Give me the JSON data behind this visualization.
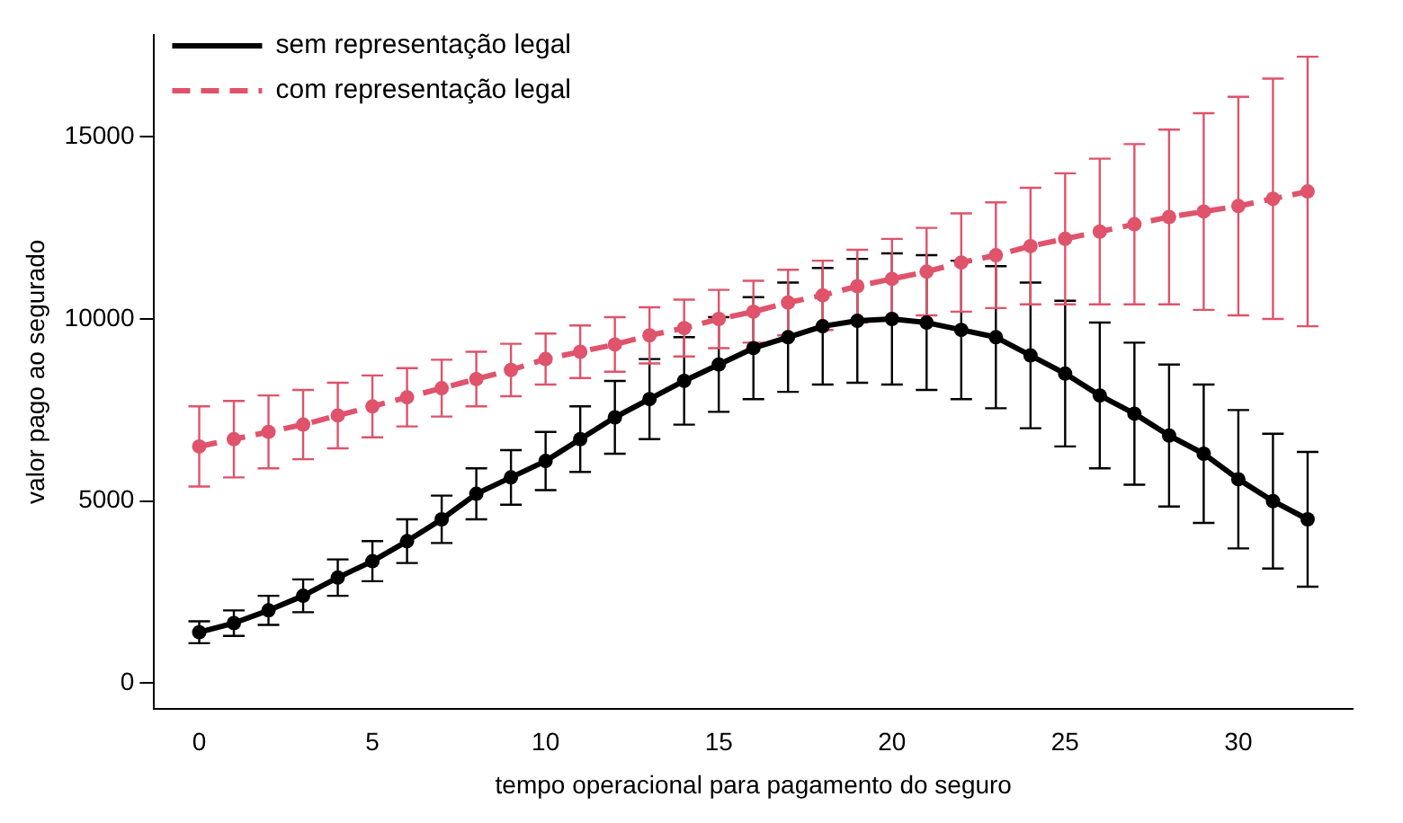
{
  "chart_data": {
    "type": "line",
    "xlabel": "tempo operacional para pagamento do seguro",
    "ylabel": "valor pago ao segurado",
    "xlim": [
      -1.3,
      33.3
    ],
    "ylim": [
      -700,
      17800
    ],
    "xticks": [
      0,
      5,
      10,
      15,
      20,
      25,
      30
    ],
    "yticks": [
      0,
      5000,
      10000,
      15000
    ],
    "grid": false,
    "legend": "top left",
    "marker": "circle",
    "series": [
      {
        "name": "sem representação legal",
        "color": "#000000",
        "line_style": "solid",
        "x": [
          0,
          1,
          2,
          3,
          4,
          5,
          6,
          7,
          8,
          9,
          10,
          11,
          12,
          13,
          14,
          15,
          16,
          17,
          18,
          19,
          20,
          21,
          22,
          23,
          24,
          25,
          26,
          27,
          28,
          29,
          30,
          31,
          32
        ],
        "values": [
          1400,
          1650,
          2000,
          2400,
          2900,
          3350,
          3900,
          4500,
          5200,
          5650,
          6100,
          6700,
          7300,
          7800,
          8300,
          8750,
          9200,
          9500,
          9800,
          9950,
          10000,
          9900,
          9700,
          9500,
          9000,
          8500,
          7900,
          7400,
          6800,
          6300,
          5600,
          5000,
          4500
        ],
        "errors": [
          300,
          350,
          400,
          450,
          500,
          550,
          600,
          650,
          700,
          750,
          800,
          900,
          1000,
          1100,
          1200,
          1300,
          1400,
          1500,
          1600,
          1700,
          1800,
          1850,
          1900,
          1950,
          2000,
          2000,
          2000,
          1950,
          1950,
          1900,
          1900,
          1850,
          1850
        ]
      },
      {
        "name": "com representação legal",
        "color": "#df536b",
        "line_style": "dashed",
        "x": [
          0,
          1,
          2,
          3,
          4,
          5,
          6,
          7,
          8,
          9,
          10,
          11,
          12,
          13,
          14,
          15,
          16,
          17,
          18,
          19,
          20,
          21,
          22,
          23,
          24,
          25,
          26,
          27,
          28,
          29,
          30,
          31,
          32
        ],
        "values": [
          6500,
          6700,
          6900,
          7100,
          7350,
          7600,
          7850,
          8100,
          8350,
          8600,
          8900,
          9100,
          9300,
          9550,
          9750,
          10000,
          10200,
          10450,
          10650,
          10900,
          11100,
          11300,
          11550,
          11750,
          12000,
          12200,
          12400,
          12600,
          12800,
          12950,
          13100,
          13300,
          13500
        ],
        "errors": [
          1100,
          1050,
          1000,
          950,
          900,
          850,
          800,
          780,
          750,
          720,
          700,
          720,
          750,
          770,
          780,
          800,
          850,
          900,
          950,
          1000,
          1100,
          1200,
          1350,
          1450,
          1600,
          1800,
          2000,
          2200,
          2400,
          2700,
          3000,
          3300,
          3700
        ]
      }
    ]
  }
}
